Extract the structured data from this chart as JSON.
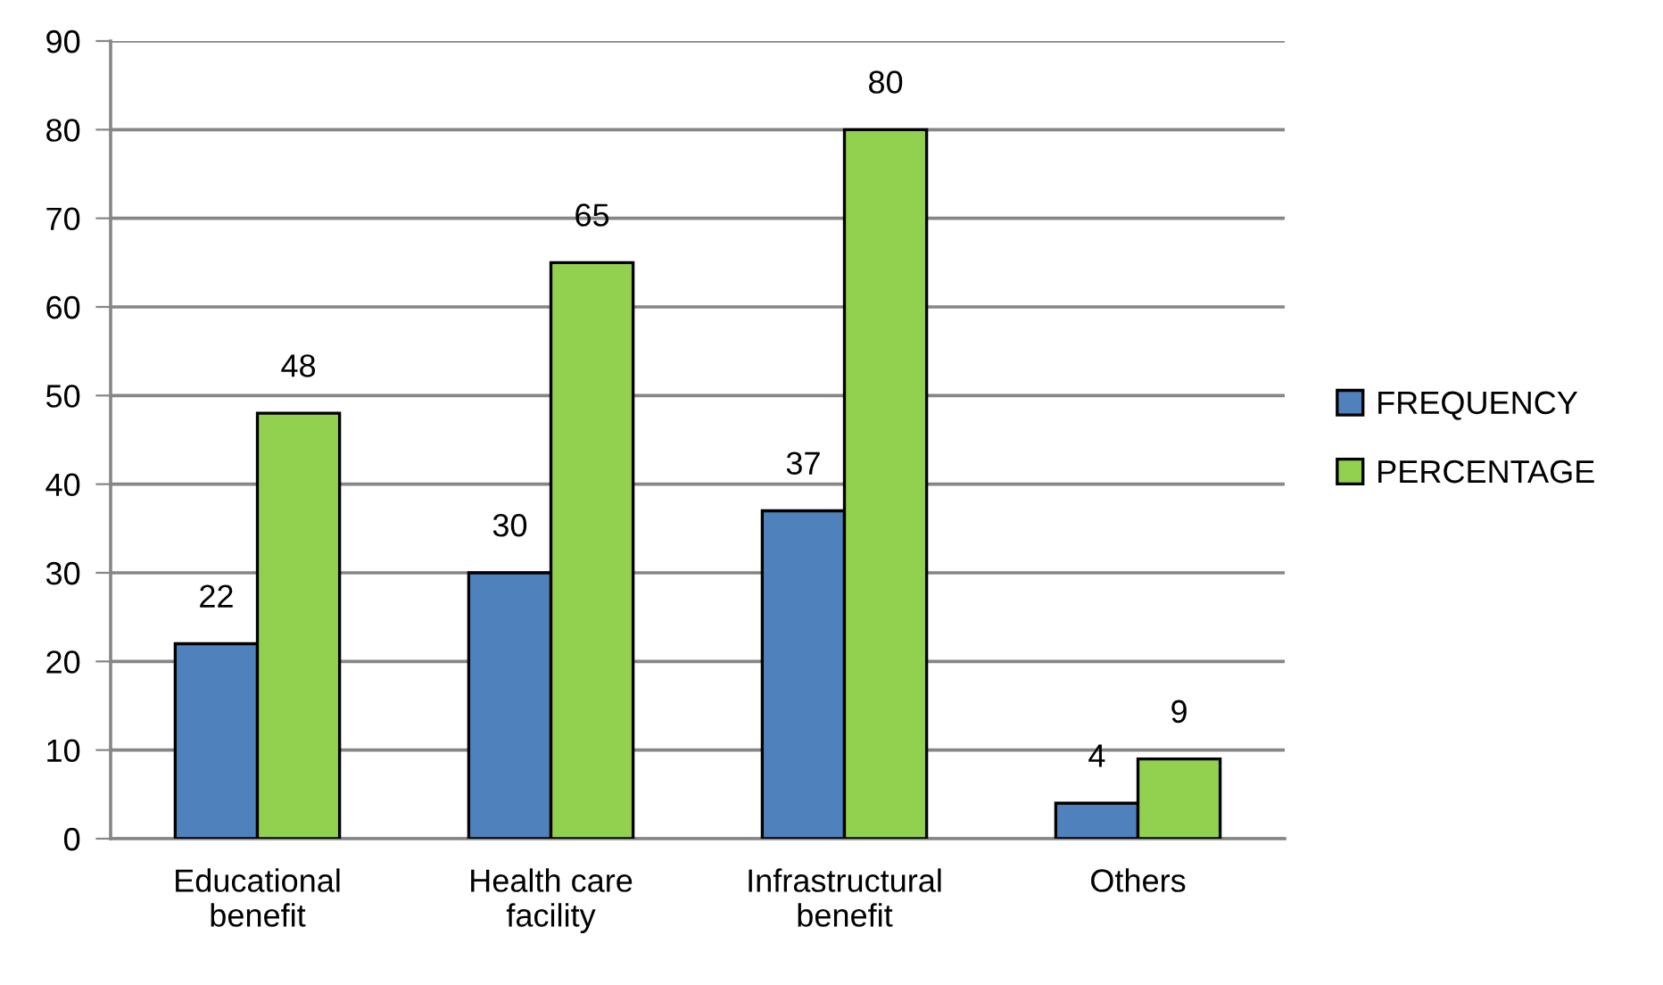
{
  "chart_data": {
    "type": "bar",
    "categories": [
      "Educational\nbenefit",
      "Health care\nfacility",
      "Infrastructural\nbenefit",
      "Others"
    ],
    "series": [
      {
        "name": "FREQUENCY",
        "color": "#4f81bd",
        "values": [
          22,
          30,
          37,
          4
        ]
      },
      {
        "name": "PERCENTAGE",
        "color": "#92d050",
        "values": [
          48,
          65,
          80,
          9
        ]
      }
    ],
    "ylim": [
      0,
      90
    ],
    "yticks": [
      0,
      10,
      20,
      30,
      40,
      50,
      60,
      70,
      80,
      90
    ],
    "grid": "y",
    "legend": "right",
    "data_labels": true
  }
}
